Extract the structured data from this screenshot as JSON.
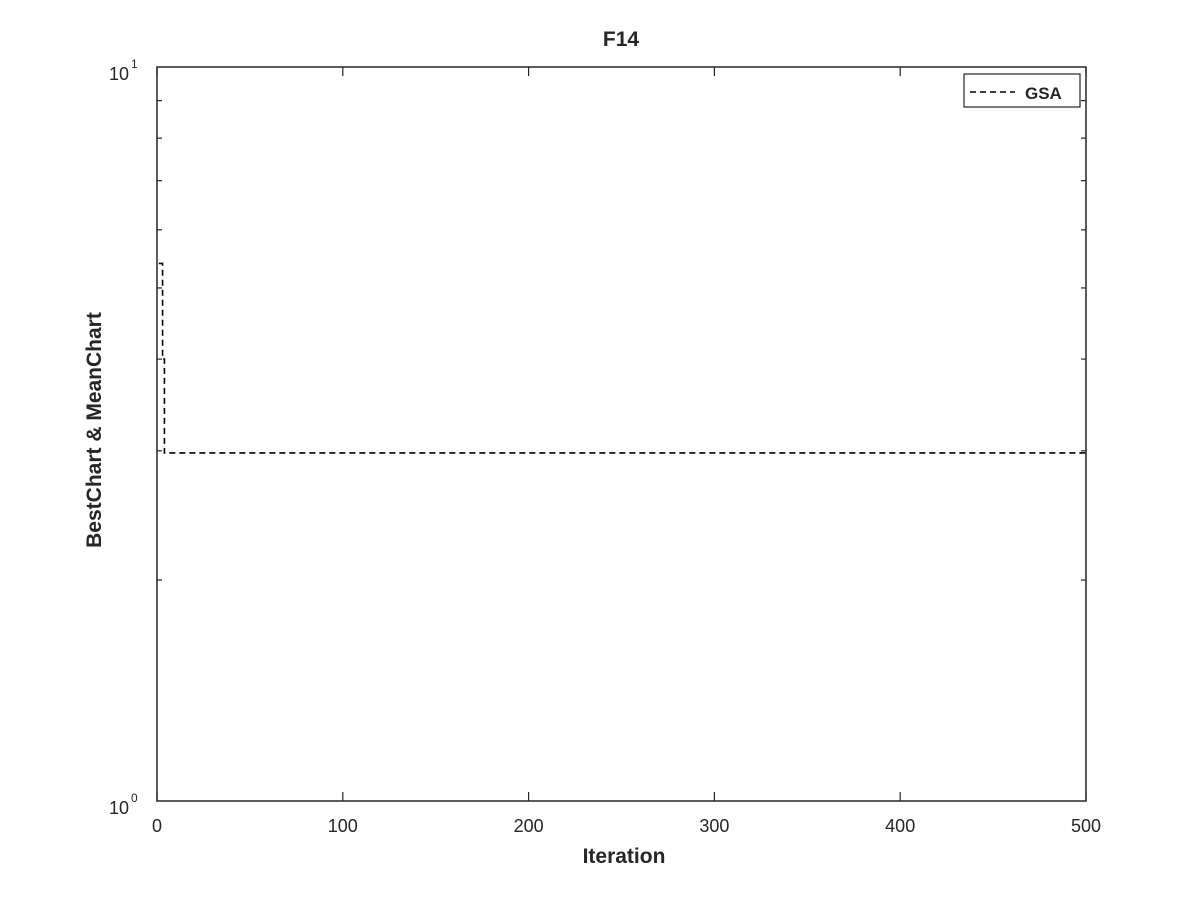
{
  "chart_data": {
    "type": "line",
    "title": "F14",
    "xlabel": "Iteration",
    "ylabel": "BestChart & MeanChart",
    "xlim": [
      0,
      500
    ],
    "ylim": [
      1,
      10
    ],
    "yscale": "log",
    "xticks": [
      0,
      100,
      200,
      300,
      400,
      500
    ],
    "xtick_labels": [
      "0",
      "100",
      "200",
      "300",
      "400",
      "500"
    ],
    "yticks": [
      1,
      10
    ],
    "ytick_labels": [
      {
        "base": "10",
        "exp": "0"
      },
      {
        "base": "10",
        "exp": "1"
      }
    ],
    "grid": false,
    "legend_position": "top-right",
    "series": [
      {
        "name": "GSA",
        "line_style": "dashed",
        "color": "#000000",
        "x": [
          1,
          3,
          3,
          4,
          4,
          500
        ],
        "y": [
          5.4,
          5.4,
          4.0,
          4.0,
          2.98,
          2.98
        ]
      }
    ]
  }
}
